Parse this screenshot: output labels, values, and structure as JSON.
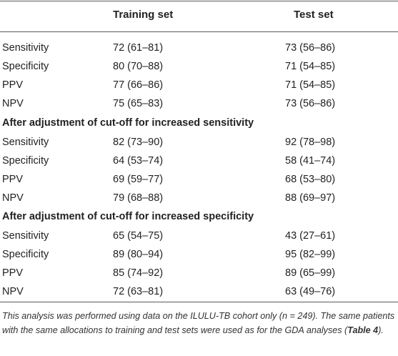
{
  "header": {
    "col0": "",
    "col1": "Training set",
    "col2": "Test set"
  },
  "groups": [
    {
      "title": "",
      "rows": [
        {
          "label": "Sensitivity",
          "train": "72 (61–81)",
          "test": "73 (56–86)"
        },
        {
          "label": "Specificity",
          "train": "80 (70–88)",
          "test": "71 (54–85)"
        },
        {
          "label": "PPV",
          "train": "77 (66–86)",
          "test": "71 (54–85)"
        },
        {
          "label": "NPV",
          "train": "75 (65–83)",
          "test": "73 (56–86)"
        }
      ]
    },
    {
      "title": "After adjustment of cut-off for increased sensitivity",
      "rows": [
        {
          "label": "Sensitivity",
          "train": "82 (73–90)",
          "test": "92 (78–98)"
        },
        {
          "label": "Specificity",
          "train": "64 (53–74)",
          "test": "58 (41–74)"
        },
        {
          "label": "PPV",
          "train": "69 (59–77)",
          "test": "68 (53–80)"
        },
        {
          "label": "NPV",
          "train": "79 (68–88)",
          "test": "88 (69–97)"
        }
      ]
    },
    {
      "title": "After adjustment of cut-off for increased specificity",
      "rows": [
        {
          "label": "Sensitivity",
          "train": "65 (54–75)",
          "test": "43 (27–61)"
        },
        {
          "label": "Specificity",
          "train": "89 (80–94)",
          "test": "95 (82–99)"
        },
        {
          "label": "PPV",
          "train": "85 (74–92)",
          "test": "89 (65–99)"
        },
        {
          "label": "NPV",
          "train": "72 (63–81)",
          "test": "63 (49–76)"
        }
      ]
    }
  ],
  "footnote": {
    "text_before": "This analysis was performed using data on the ILULU-TB cohort only (n = 249). The same patients with the same allocations to training and test sets were used as for the GDA analyses (",
    "link": "Table 4",
    "text_after": ")."
  }
}
